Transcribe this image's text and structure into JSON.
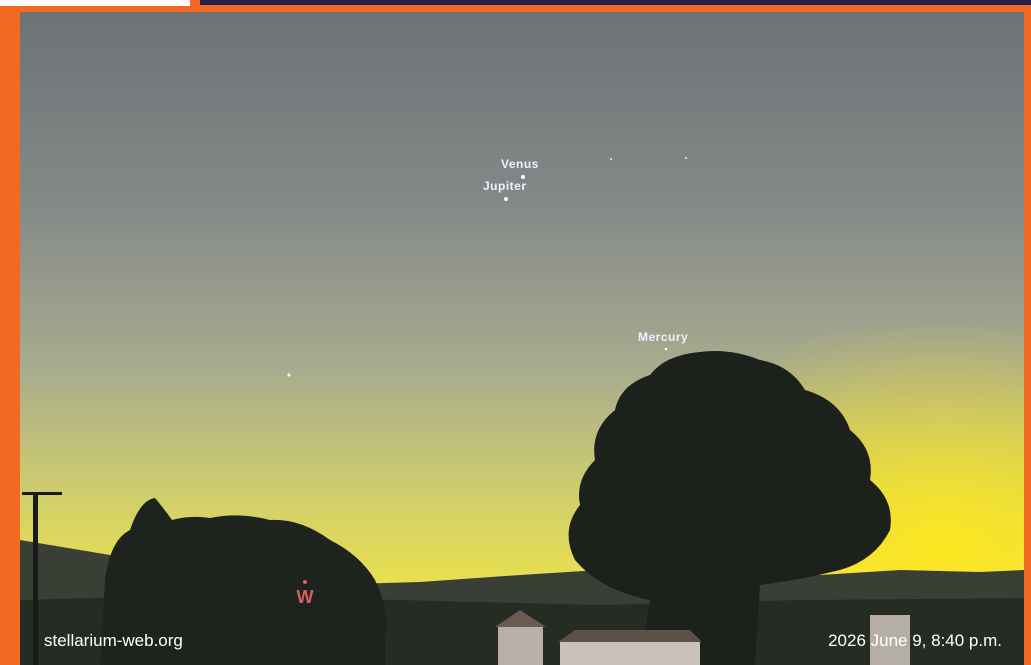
{
  "labels": {
    "venus": "Venus",
    "jupiter": "Jupiter",
    "mercury": "Mercury",
    "compass": "W"
  },
  "footer": {
    "site": "stellarium-web.org",
    "datetime": "2026 June 9, 8:40 p.m."
  }
}
